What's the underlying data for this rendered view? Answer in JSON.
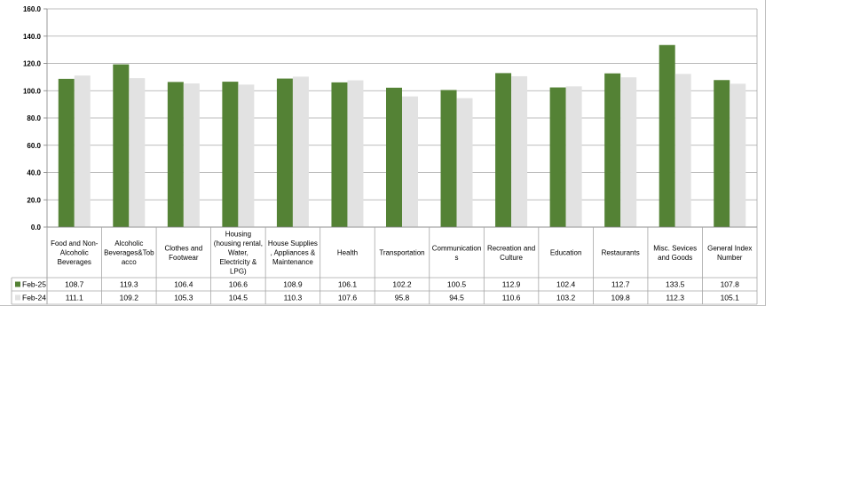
{
  "chart_data": {
    "type": "bar",
    "categories": [
      [
        "Food and Non-",
        "Alcoholic",
        "Beverages"
      ],
      [
        "Alcoholic",
        "Beverages&Tob",
        "acco"
      ],
      [
        "Clothes and",
        "Footwear"
      ],
      [
        "Housing",
        "(housing rental,",
        "Water,",
        "Electricity &",
        "LPG)"
      ],
      [
        "House Supplies",
        ", Appliances &",
        "Maintenance"
      ],
      [
        "Health"
      ],
      [
        "Transportation"
      ],
      [
        "Communication",
        "s"
      ],
      [
        "Recreation and",
        "Culture"
      ],
      [
        "Education"
      ],
      [
        "Restaurants"
      ],
      [
        "Misc. Sevices",
        "and Goods"
      ],
      [
        "General Index",
        "Number"
      ]
    ],
    "series": [
      {
        "name": "Feb-25",
        "color": "#548235",
        "values": [
          108.7,
          119.3,
          106.4,
          106.6,
          108.9,
          106.1,
          102.2,
          100.5,
          112.9,
          102.4,
          112.7,
          133.5,
          107.8
        ],
        "labels": [
          "108.7",
          "119.3",
          "106.4",
          "106.6",
          "108.9",
          "106.1",
          "102.2",
          "100.5",
          "112.9",
          "102.4",
          "112.7",
          "133.5",
          "107.8"
        ]
      },
      {
        "name": "Feb-24",
        "color": "#e2e2e2",
        "values": [
          111.1,
          109.2,
          105.3,
          104.5,
          110.3,
          107.6,
          95.8,
          94.5,
          110.6,
          103.2,
          109.8,
          112.3,
          105.1
        ],
        "labels": [
          "111.1",
          "109.2",
          "105.3",
          "104.5",
          "110.3",
          "107.6",
          "95.8",
          "94.5",
          "110.6",
          "103.2",
          "109.8",
          "112.3",
          "105.1"
        ]
      }
    ],
    "ylim": [
      0,
      160
    ],
    "yticks": [
      "0.0",
      "20.0",
      "40.0",
      "60.0",
      "80.0",
      "100.0",
      "120.0",
      "140.0",
      "160.0"
    ],
    "grid": true,
    "legend": "data-table"
  }
}
